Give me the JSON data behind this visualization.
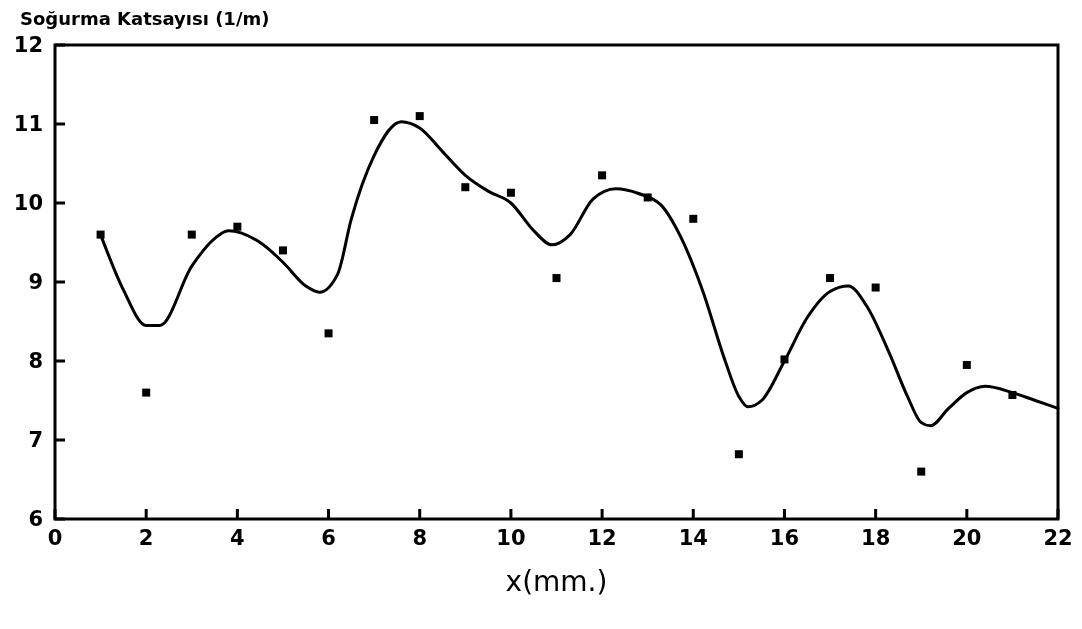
{
  "chart_data": {
    "type": "scatter",
    "ylabel": "Soğurma Katsayısı (1/m)",
    "xlabel": "x(mm.)",
    "marker": "square",
    "xlim": [
      0,
      22
    ],
    "ylim": [
      6,
      12
    ],
    "xticks": [
      0,
      2,
      4,
      6,
      8,
      10,
      12,
      14,
      16,
      18,
      20,
      22
    ],
    "yticks": [
      6,
      7,
      8,
      9,
      10,
      11,
      12
    ],
    "grid": false,
    "series": [
      {
        "color": "#000000",
        "x": [
          1,
          2,
          3,
          4,
          5,
          6,
          7,
          8,
          9,
          10,
          11,
          12,
          13,
          14,
          15,
          16,
          17,
          18,
          19,
          20,
          21
        ],
        "values": [
          9.6,
          7.6,
          9.6,
          9.7,
          9.4,
          8.35,
          11.05,
          11.1,
          10.2,
          10.13,
          9.05,
          10.35,
          10.07,
          9.8,
          6.82,
          8.02,
          9.05,
          8.93,
          6.6,
          7.95,
          7.57
        ]
      },
      {
        "type": "line",
        "color": "#000000",
        "line_style": "solid",
        "marker": "none",
        "x": [
          1,
          1.5,
          2,
          2.3,
          3,
          3.5,
          3.8,
          4.5,
          5,
          5.5,
          5.8,
          6.2,
          6.5,
          7,
          7.6,
          8,
          8.5,
          9,
          9.5,
          10,
          10.5,
          10.9,
          11.3,
          11.8,
          12.3,
          12.8,
          13.3,
          13.7,
          14.2,
          14.7,
          15,
          15.2,
          15.5,
          16,
          16.5,
          17,
          17.4,
          17.8,
          18.3,
          18.7,
          19,
          19.2,
          19.6,
          20,
          20.4,
          21,
          21.5,
          22
        ],
        "values": [
          9.6,
          8.9,
          8.45,
          8.45,
          9.2,
          9.55,
          9.65,
          9.5,
          9.25,
          8.95,
          8.87,
          9.1,
          9.8,
          10.6,
          11.03,
          10.95,
          10.65,
          10.35,
          10.15,
          10.0,
          9.65,
          9.47,
          9.6,
          10.05,
          10.18,
          10.12,
          9.97,
          9.6,
          8.9,
          8.0,
          7.55,
          7.42,
          7.5,
          8.0,
          8.55,
          8.88,
          8.95,
          8.7,
          8.1,
          7.55,
          7.22,
          7.18,
          7.4,
          7.6,
          7.68,
          7.6,
          7.5,
          7.4
        ]
      }
    ]
  }
}
